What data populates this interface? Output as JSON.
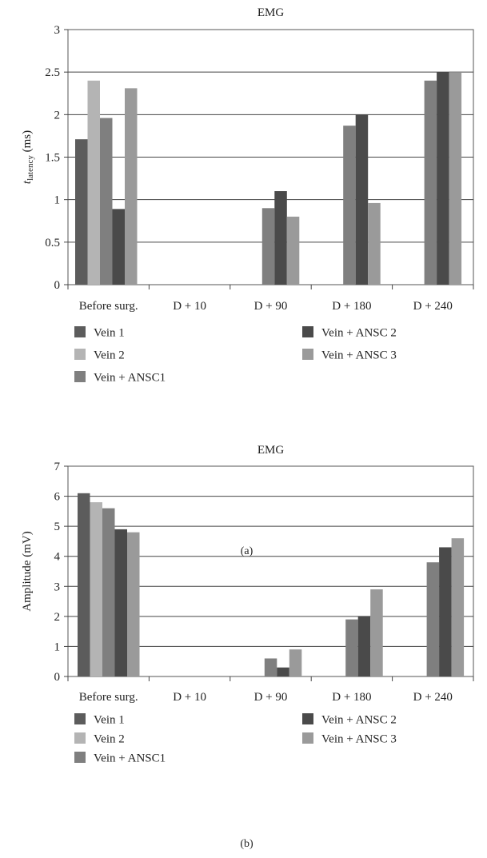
{
  "chart_data": [
    {
      "type": "bar",
      "title": "EMG",
      "ylabel_main": "t",
      "ylabel_sub": "latency",
      "ylabel_unit": " (ms)",
      "categories": [
        "Before surg.",
        "D + 10",
        "D + 90",
        "D + 180",
        "D + 240"
      ],
      "ylim": [
        0,
        3
      ],
      "yticks": [
        "0",
        "0.5",
        "1",
        "1.5",
        "2",
        "2.5",
        "3"
      ],
      "grid": true,
      "legend": "bottom",
      "panel_label": "(a)",
      "series": [
        {
          "name": "Vein 1",
          "color": "#5c5c5c",
          "values": [
            1.71,
            null,
            null,
            null,
            null
          ]
        },
        {
          "name": "Vein 2",
          "color": "#b4b4b4",
          "values": [
            2.4,
            null,
            null,
            null,
            null
          ]
        },
        {
          "name": "Vein + ANSC1",
          "color": "#7f7f7f",
          "values": [
            1.96,
            null,
            0.9,
            1.87,
            2.4
          ]
        },
        {
          "name": "Vein + ANSC 2",
          "color": "#4a4a4a",
          "values": [
            0.89,
            null,
            1.1,
            2.0,
            2.5
          ]
        },
        {
          "name": "Vein + ANSC 3",
          "color": "#9a9a9a",
          "values": [
            2.31,
            null,
            0.8,
            0.96,
            2.5
          ]
        }
      ]
    },
    {
      "type": "bar",
      "title": "EMG",
      "ylabel": "Amplitude (mV)",
      "categories": [
        "Before surg.",
        "D + 10",
        "D + 90",
        "D + 180",
        "D + 240"
      ],
      "ylim": [
        0,
        7
      ],
      "yticks": [
        "0",
        "1",
        "2",
        "3",
        "4",
        "5",
        "6",
        "7"
      ],
      "grid": true,
      "legend": "bottom",
      "panel_label": "(b)",
      "series": [
        {
          "name": "Vein 1",
          "color": "#5c5c5c",
          "values": [
            6.1,
            null,
            null,
            null,
            null
          ]
        },
        {
          "name": "Vein 2",
          "color": "#b4b4b4",
          "values": [
            5.8,
            null,
            null,
            null,
            null
          ]
        },
        {
          "name": "Vein + ANSC1",
          "color": "#7f7f7f",
          "values": [
            5.6,
            null,
            0.6,
            1.9,
            3.8
          ]
        },
        {
          "name": "Vein + ANSC 2",
          "color": "#4a4a4a",
          "values": [
            4.9,
            null,
            0.3,
            2.0,
            4.3
          ]
        },
        {
          "name": "Vein + ANSC 3",
          "color": "#9a9a9a",
          "values": [
            4.8,
            null,
            0.9,
            2.9,
            4.6
          ]
        }
      ]
    }
  ]
}
